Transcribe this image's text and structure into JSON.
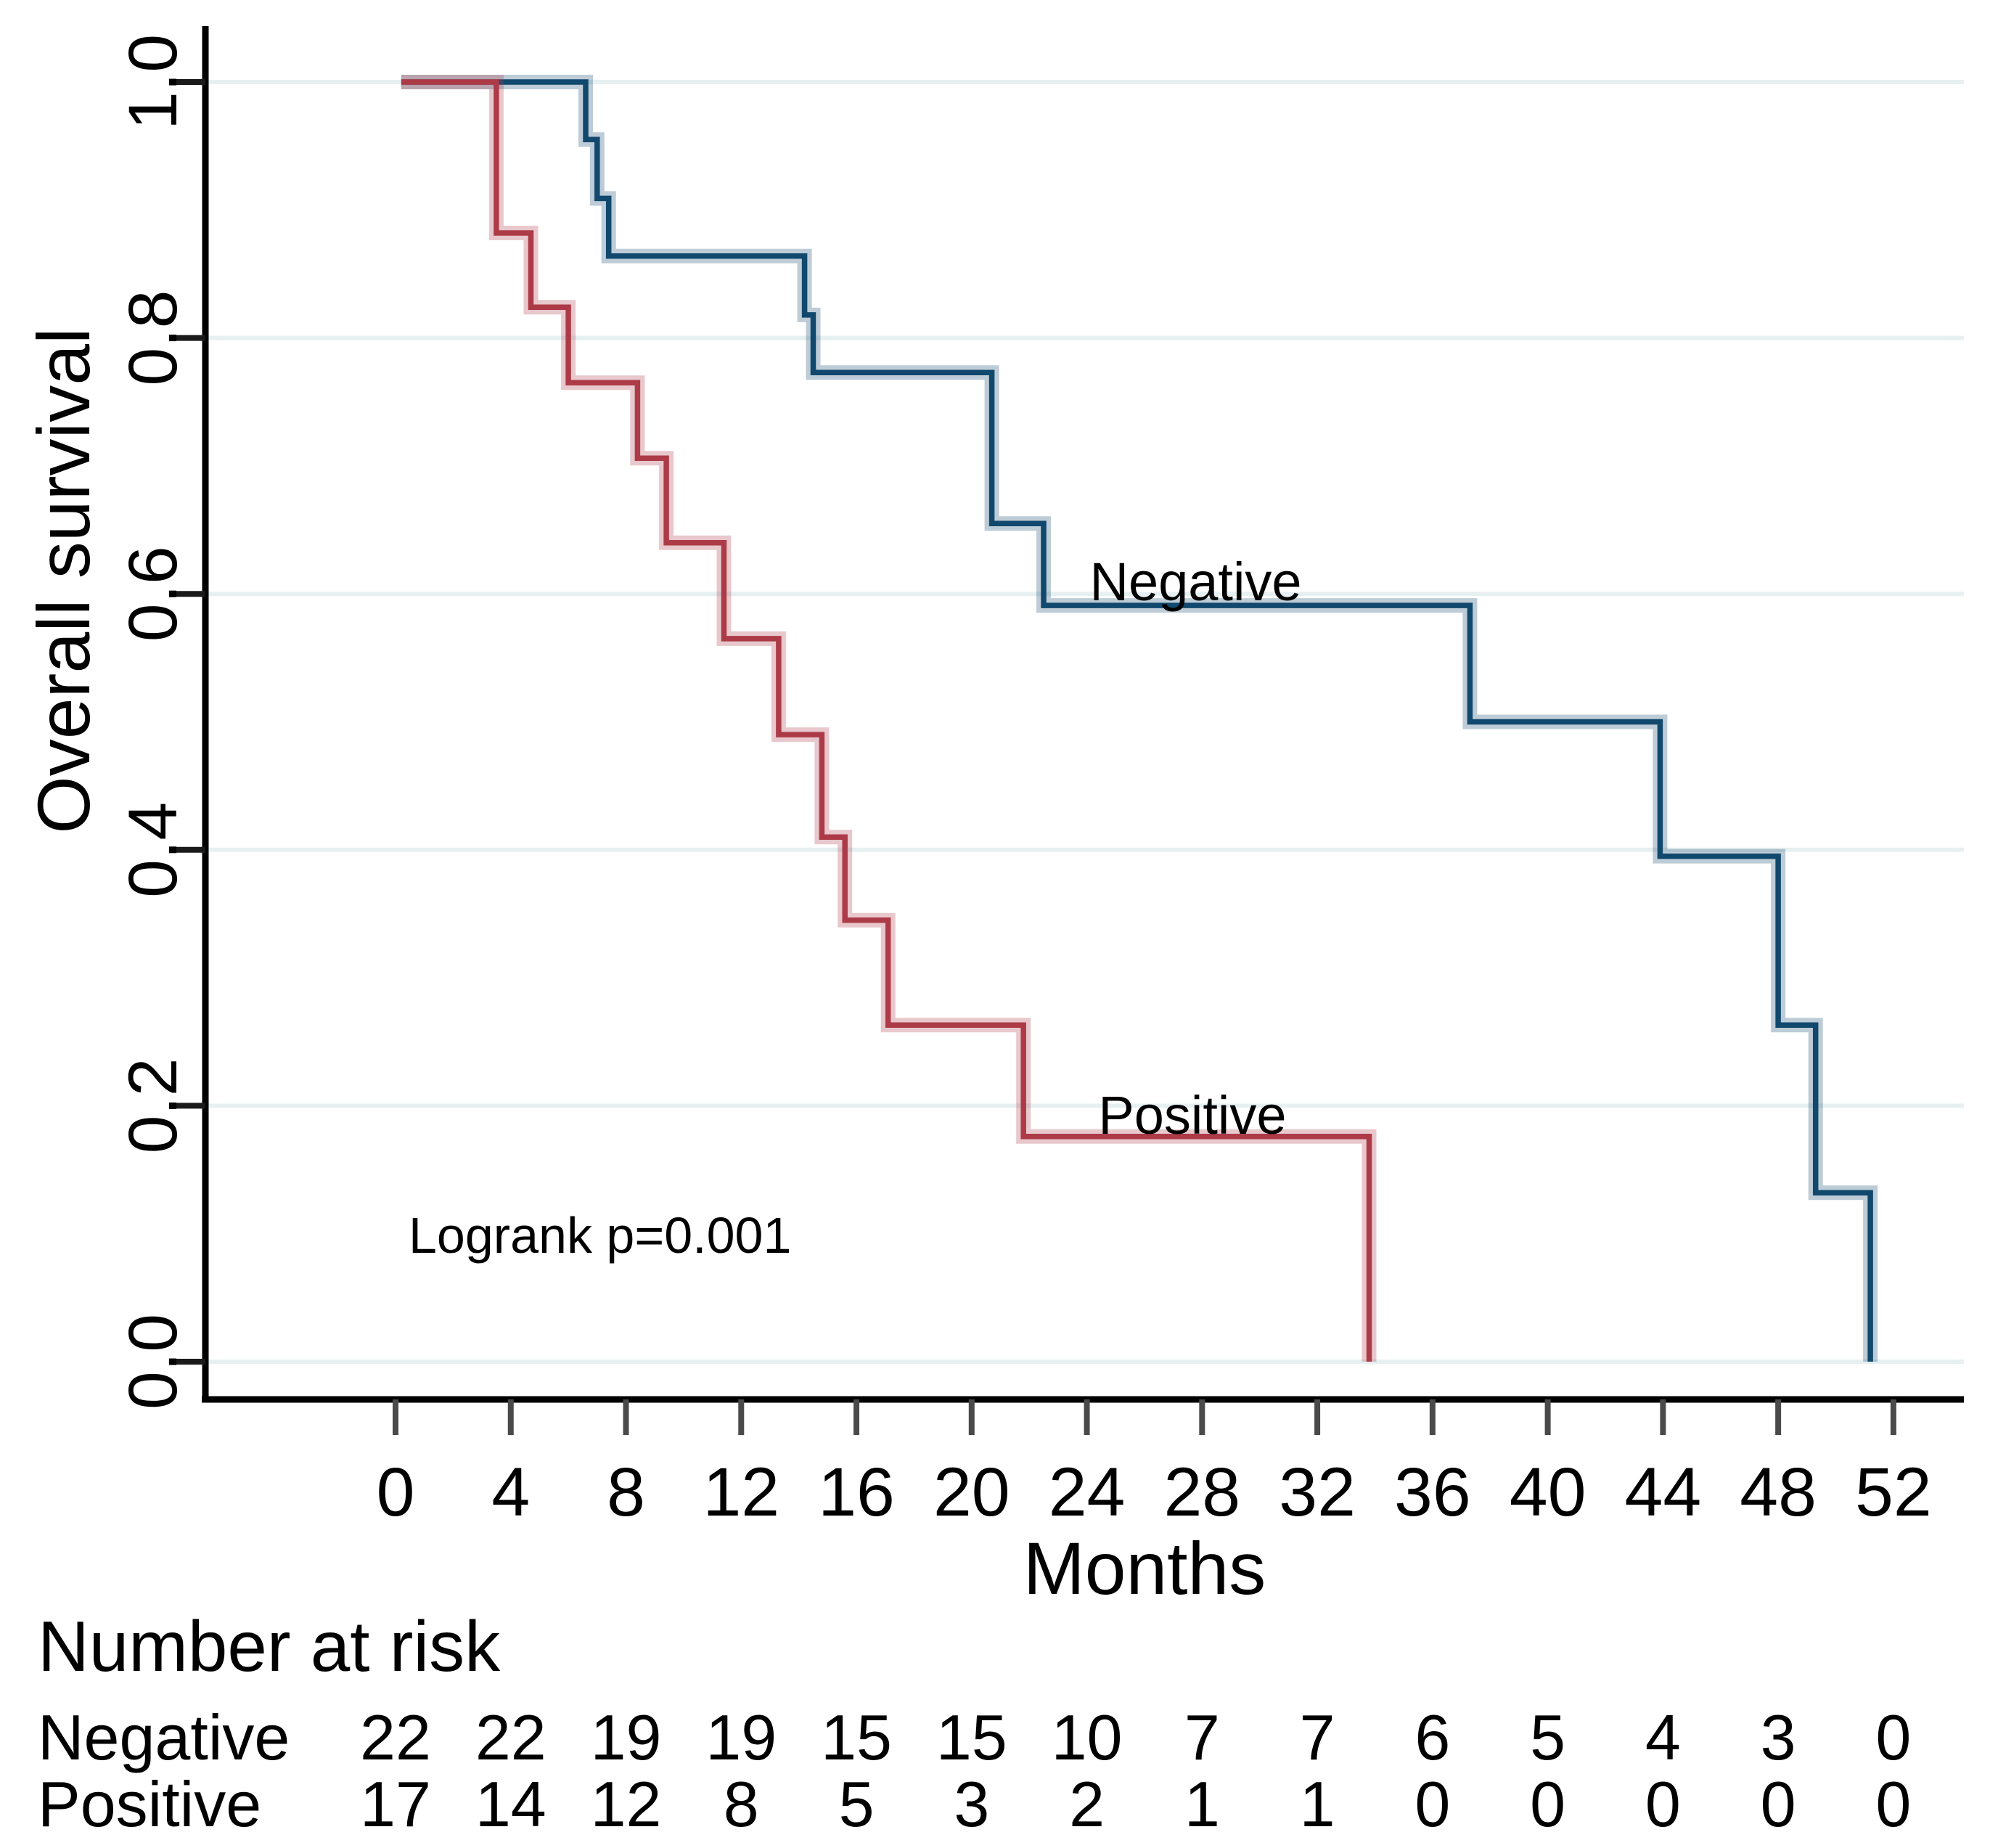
{
  "figure": {
    "background": "#ffffff",
    "text_color": "#000000"
  },
  "chart_data": {
    "type": "line",
    "variant": "kaplan_meier_step_plot",
    "title": "",
    "xlabel": "Months",
    "ylabel": "Overall survival",
    "xlim": [
      0,
      52
    ],
    "ylim": [
      0.0,
      1.0
    ],
    "grid": "horizontal_only",
    "x_ticks": [
      0,
      4,
      8,
      12,
      16,
      20,
      24,
      28,
      32,
      36,
      40,
      44,
      48,
      52
    ],
    "y_tick_values": [
      1.0,
      0.8,
      0.6,
      0.4,
      0.2,
      0.0
    ],
    "y_tick_labels": [
      "1.0",
      "0.8",
      "0.6",
      "0.4",
      "0.2",
      "0.0"
    ],
    "annotation": "Logrank p=0.001",
    "legend_position": "labels_on_curves",
    "series": [
      {
        "name": "Negative",
        "color": "#11486D",
        "points": [
          [
            0.2,
            1.0
          ],
          [
            6.6,
            0.955
          ],
          [
            7.0,
            0.909
          ],
          [
            7.4,
            0.864
          ],
          [
            14.2,
            0.818
          ],
          [
            14.5,
            0.773
          ],
          [
            20.7,
            0.655
          ],
          [
            22.5,
            0.591
          ],
          [
            37.3,
            0.5
          ],
          [
            43.9,
            0.395
          ],
          [
            48.0,
            0.263
          ],
          [
            49.3,
            0.132
          ],
          [
            51.2,
            0.0
          ]
        ],
        "label_anchor": {
          "month": 24.1,
          "survival": 0.595
        }
      },
      {
        "name": "Positive",
        "color": "#AC3B47",
        "points": [
          [
            0.2,
            1.0
          ],
          [
            3.5,
            0.882
          ],
          [
            4.7,
            0.824
          ],
          [
            6.0,
            0.765
          ],
          [
            8.4,
            0.706
          ],
          [
            9.4,
            0.64
          ],
          [
            11.4,
            0.565
          ],
          [
            13.3,
            0.49
          ],
          [
            14.8,
            0.41
          ],
          [
            15.6,
            0.345
          ],
          [
            17.1,
            0.263
          ],
          [
            21.8,
            0.176
          ],
          [
            33.8,
            0.0
          ]
        ],
        "label_anchor": {
          "month": 24.4,
          "survival": 0.178
        }
      }
    ],
    "risk_table": {
      "title": "Number at risk",
      "months": [
        0,
        4,
        8,
        12,
        16,
        20,
        24,
        28,
        32,
        36,
        40,
        44,
        48,
        52
      ],
      "rows": [
        {
          "name": "Negative",
          "values": [
            22,
            22,
            19,
            19,
            15,
            15,
            10,
            7,
            7,
            6,
            5,
            4,
            3,
            0
          ]
        },
        {
          "name": "Positive",
          "values": [
            17,
            14,
            12,
            8,
            5,
            3,
            2,
            1,
            1,
            0,
            0,
            0,
            0,
            0
          ]
        }
      ]
    },
    "colors": {
      "negative_line": "#11486D",
      "positive_line": "#AC3B47",
      "gridline": "#E7F0F1",
      "axis": "#000000",
      "x_tick_mark": "#4a4a4a"
    }
  }
}
